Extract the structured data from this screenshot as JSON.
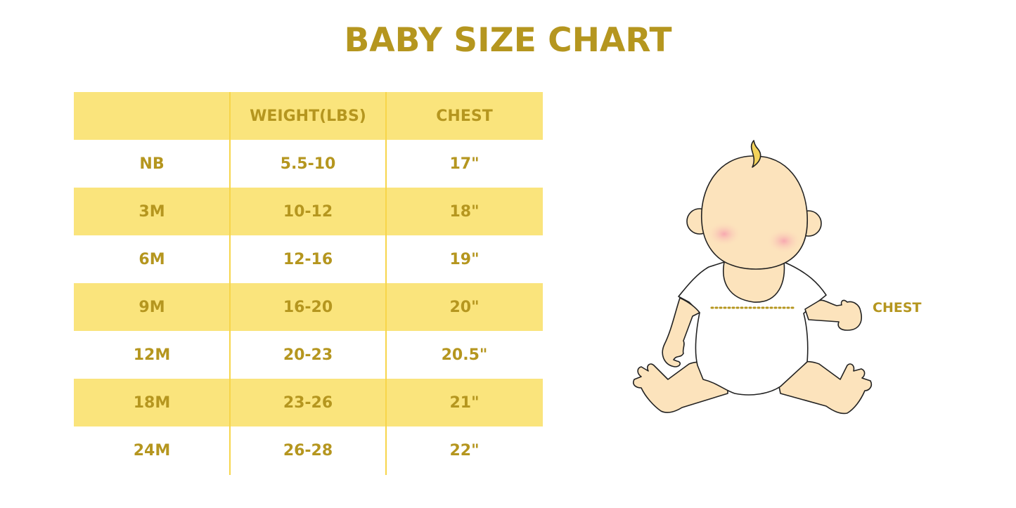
{
  "title": "BABY SIZE CHART",
  "table": {
    "headers": [
      "",
      "WEIGHT(LBS)",
      "CHEST"
    ],
    "rows": [
      [
        "NB",
        "5.5-10",
        "17\""
      ],
      [
        "3M",
        "10-12",
        "18\""
      ],
      [
        "6M",
        "12-16",
        "19\""
      ],
      [
        "9M",
        "16-20",
        "20\""
      ],
      [
        "12M",
        "20-23",
        "20.5\""
      ],
      [
        "18M",
        "23-26",
        "21\""
      ],
      [
        "24M",
        "26-28",
        "22\""
      ]
    ]
  },
  "illustration": {
    "chest_label": "CHEST"
  },
  "colors": {
    "accent_text": "#B5961F",
    "band": "#FAE47C",
    "divider": "#F7D54A",
    "skin": "#FCE3BC"
  }
}
